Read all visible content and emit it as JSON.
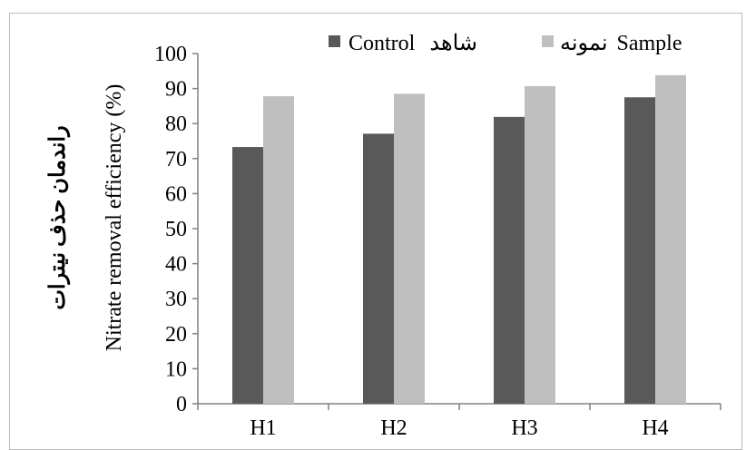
{
  "chart_data": {
    "type": "bar",
    "categories": [
      "H1",
      "H2",
      "H3",
      "H4"
    ],
    "series": [
      {
        "name": "شاهد Control",
        "name_en": "Control",
        "name_fa": "شاهد",
        "color": "#595959",
        "values": [
          73.3,
          77.1,
          81.9,
          87.5
        ]
      },
      {
        "name": "نمونه Sample",
        "name_en": "Sample",
        "name_fa": "نمونه",
        "color": "#bfbfbf",
        "values": [
          87.8,
          88.5,
          90.7,
          93.8
        ]
      }
    ],
    "ylabel_en": "Nitrate removal efficiency (%)",
    "ylabel_fa": "راندمان حذف نیترات",
    "ylim": [
      0,
      100
    ],
    "yticks": [
      "0",
      "10",
      "20",
      "30",
      "40",
      "50",
      "60",
      "70",
      "80",
      "90",
      "100"
    ],
    "grid": false,
    "legend_position": "top"
  }
}
